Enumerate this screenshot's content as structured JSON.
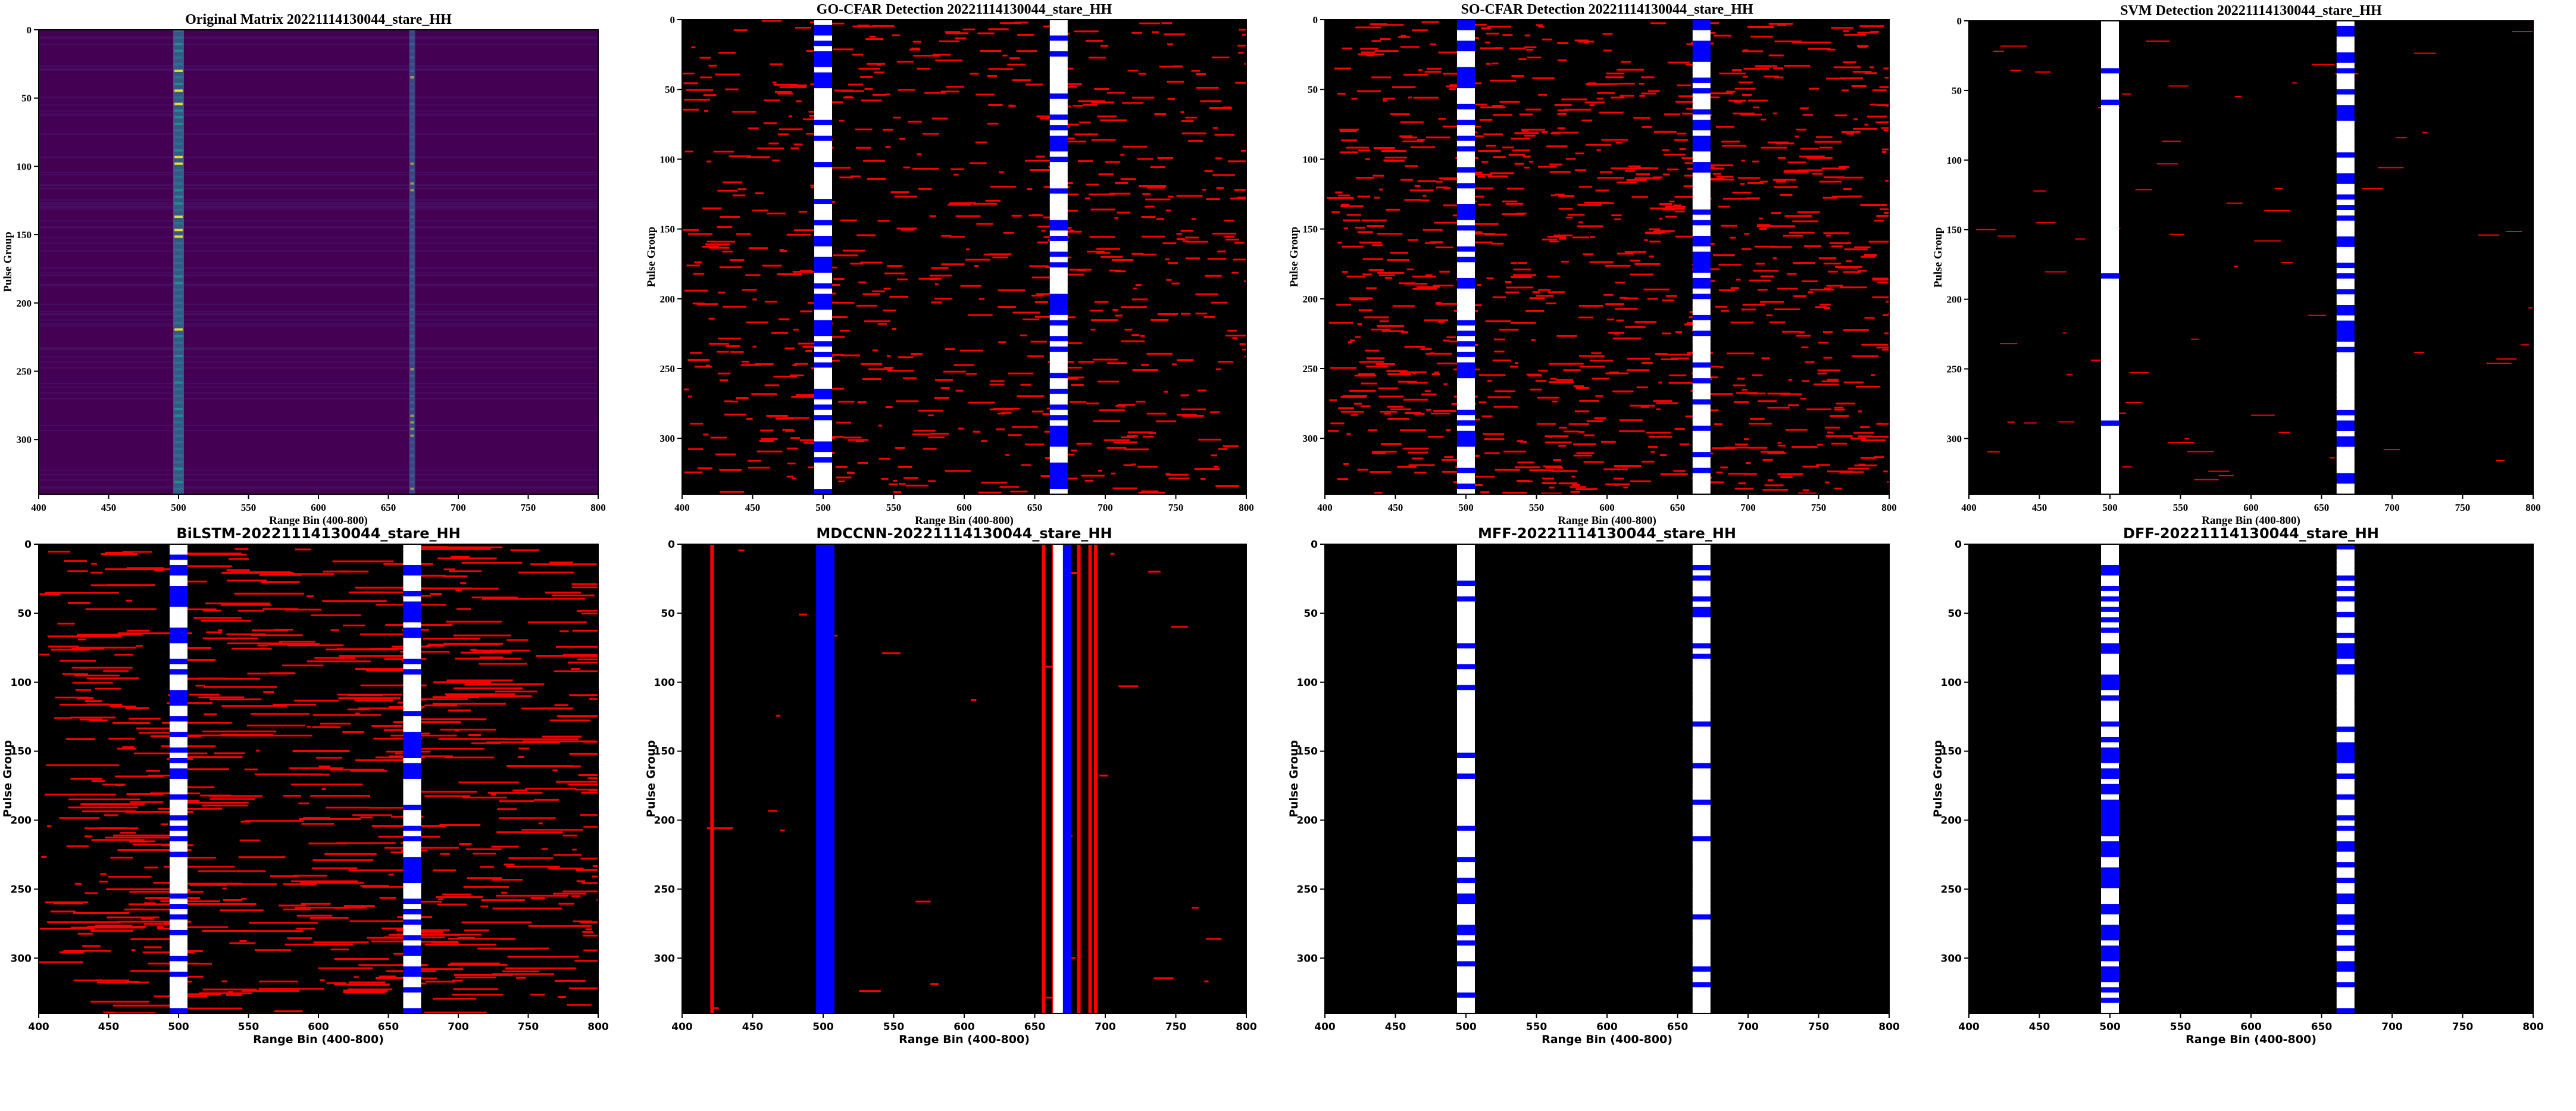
{
  "figure": {
    "background": "#ffffff"
  },
  "colors": {
    "background": "#000000",
    "false_alarm": "#ff0000",
    "detected_target": "#ffffff",
    "missed_target": "#0000ff",
    "viridis_low": "#440154",
    "viridis_mid": "#21918c",
    "viridis_high": "#fde725"
  },
  "chart_data": [
    {
      "type": "heatmap",
      "title": "Original Matrix 20221114130044_stare_HH",
      "xlabel": "Range Bin (400-800)",
      "ylabel": "Pulse Group",
      "xlim": [
        400,
        800
      ],
      "ylim": [
        340,
        0
      ],
      "xticks": [
        "400",
        "450",
        "500",
        "550",
        "600",
        "650",
        "700",
        "750",
        "800"
      ],
      "yticks": [
        "0",
        "50",
        "100",
        "150",
        "200",
        "250",
        "300"
      ],
      "colormap": "viridis",
      "target_columns": [
        500,
        667
      ]
    },
    {
      "type": "heatmap",
      "title": "GO-CFAR Detection 20221114130044_stare_HH",
      "xlabel": "Range Bin (400-800)",
      "ylabel": "Pulse Group",
      "xlim": [
        400,
        800
      ],
      "ylim": [
        340,
        0
      ],
      "xticks": [
        "400",
        "450",
        "500",
        "550",
        "600",
        "650",
        "700",
        "750",
        "800"
      ],
      "yticks": [
        "0",
        "50",
        "100",
        "150",
        "200",
        "250",
        "300"
      ],
      "false_alarm_density": 0.5,
      "target_columns": [
        500,
        667
      ]
    },
    {
      "type": "heatmap",
      "title": "SO-CFAR Detection 20221114130044_stare_HH",
      "xlabel": "Range Bin (400-800)",
      "ylabel": "Pulse Group",
      "xlim": [
        400,
        800
      ],
      "ylim": [
        340,
        0
      ],
      "xticks": [
        "400",
        "450",
        "500",
        "550",
        "600",
        "650",
        "700",
        "750",
        "800"
      ],
      "yticks": [
        "0",
        "50",
        "100",
        "150",
        "200",
        "250",
        "300"
      ],
      "false_alarm_density": 0.7,
      "target_columns": [
        500,
        667
      ]
    },
    {
      "type": "heatmap",
      "title": "SVM Detection 20221114130044_stare_HH",
      "xlabel": "Range Bin (400-800)",
      "ylabel": "Pulse Group",
      "xlim": [
        400,
        800
      ],
      "ylim": [
        340,
        0
      ],
      "xticks": [
        "400",
        "450",
        "500",
        "550",
        "600",
        "650",
        "700",
        "750",
        "800"
      ],
      "yticks": [
        "0",
        "50",
        "100",
        "150",
        "200",
        "250",
        "300"
      ],
      "false_alarm_density": 0.05,
      "target_columns": [
        500,
        667
      ]
    },
    {
      "type": "heatmap",
      "title": "BiLSTM-20221114130044_stare_HH",
      "xlabel": "Range Bin (400-800)",
      "ylabel": "Pulse Group",
      "xlim": [
        400,
        800
      ],
      "ylim": [
        340,
        0
      ],
      "xticks": [
        "400",
        "450",
        "500",
        "550",
        "600",
        "650",
        "700",
        "750",
        "800"
      ],
      "yticks": [
        "0",
        "50",
        "100",
        "150",
        "200",
        "250",
        "300"
      ],
      "false_alarm_density": 0.45,
      "target_columns": [
        500,
        667
      ]
    },
    {
      "type": "heatmap",
      "title": "MDCCNN-20221114130044_stare_HH",
      "xlabel": "Range Bin (400-800)",
      "ylabel": "Pulse Group",
      "xlim": [
        400,
        800
      ],
      "ylim": [
        340,
        0
      ],
      "xticks": [
        "400",
        "450",
        "500",
        "550",
        "600",
        "650",
        "700",
        "750",
        "800"
      ],
      "yticks": [
        "0",
        "50",
        "100",
        "150",
        "200",
        "250",
        "300"
      ],
      "false_alarm_density": 0.02,
      "target_columns": [
        500,
        667
      ]
    },
    {
      "type": "heatmap",
      "title": "MFF-20221114130044_stare_HH",
      "xlabel": "Range Bin (400-800)",
      "ylabel": "Pulse Group",
      "xlim": [
        400,
        800
      ],
      "ylim": [
        340,
        0
      ],
      "xticks": [
        "400",
        "450",
        "500",
        "550",
        "600",
        "650",
        "700",
        "750",
        "800"
      ],
      "yticks": [
        "0",
        "50",
        "100",
        "150",
        "200",
        "250",
        "300"
      ],
      "false_alarm_density": 0.0,
      "target_columns": [
        500,
        667
      ]
    },
    {
      "type": "heatmap",
      "title": "DFF-20221114130044_stare_HH",
      "xlabel": "Range Bin (400-800)",
      "ylabel": "Pulse Group",
      "xlim": [
        400,
        800
      ],
      "ylim": [
        340,
        0
      ],
      "xticks": [
        "400",
        "450",
        "500",
        "550",
        "600",
        "650",
        "700",
        "750",
        "800"
      ],
      "yticks": [
        "0",
        "50",
        "100",
        "150",
        "200",
        "250",
        "300"
      ],
      "false_alarm_density": 0.0,
      "target_columns": [
        500,
        667
      ]
    }
  ]
}
